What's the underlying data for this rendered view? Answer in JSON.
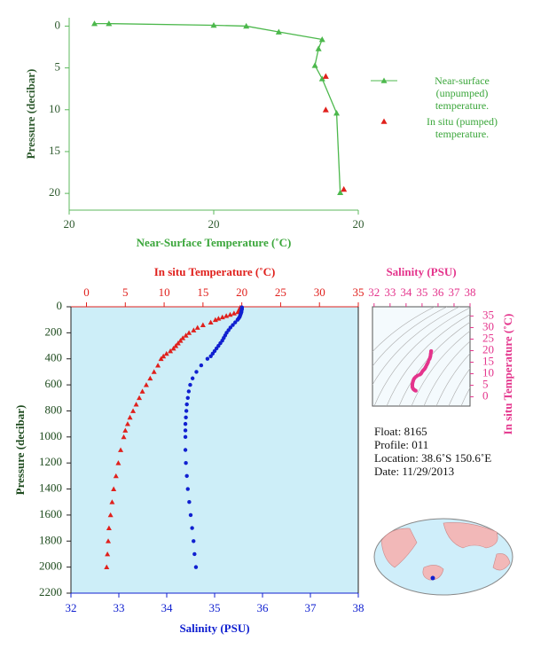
{
  "chart_data": [
    {
      "type": "line",
      "xlabel": "Near-Surface Temperature (˚C)",
      "ylabel": "Pressure (decibar)",
      "xlim": [
        19.6,
        20.4
      ],
      "xticks": [
        {
          "value": 19.6,
          "label": "20"
        },
        {
          "value": 20.0,
          "label": "20"
        },
        {
          "value": 20.4,
          "label": "20"
        }
      ],
      "ylim": [
        -1,
        22
      ],
      "yticks": [
        0,
        5,
        10,
        15,
        20
      ],
      "y_reversed": true,
      "series": [
        {
          "name": "Near-surface (unpumped) temperature.",
          "color": "#4cb84c",
          "line": true,
          "x": [
            19.67,
            19.71,
            20.0,
            20.09,
            20.18,
            20.3,
            20.29,
            20.28,
            20.3,
            20.34,
            20.35
          ],
          "y": [
            -0.3,
            -0.3,
            -0.1,
            0,
            0.7,
            1.6,
            2.7,
            4.7,
            6.3,
            10.4,
            19.9
          ]
        },
        {
          "name": "In situ (pumped) temperature.",
          "color": "#e0201c",
          "line": false,
          "x": [
            20.31,
            20.31,
            20.36
          ],
          "y": [
            6.0,
            10.0,
            19.5
          ]
        }
      ]
    },
    {
      "type": "profile",
      "ylabel": "Pressure (decibar)",
      "xlabel": "Salinity (PSU)",
      "xlim": [
        32,
        38
      ],
      "xticks": [
        32,
        33,
        34,
        35,
        36,
        37,
        38
      ],
      "x2label": "In situ Temperature (˚C)",
      "x2lim": [
        -2,
        35
      ],
      "x2ticks": [
        0,
        5,
        10,
        15,
        20,
        25,
        30,
        35
      ],
      "ylim": [
        0,
        2200
      ],
      "yticks": [
        0,
        200,
        400,
        600,
        800,
        1000,
        1200,
        1400,
        1600,
        1800,
        2000,
        2200
      ],
      "y_reversed": true,
      "y": [
        5,
        10,
        20,
        30,
        40,
        50,
        60,
        70,
        80,
        90,
        100,
        120,
        140,
        160,
        180,
        200,
        220,
        240,
        260,
        280,
        300,
        320,
        340,
        360,
        380,
        400,
        450,
        500,
        550,
        600,
        650,
        700,
        750,
        800,
        850,
        900,
        950,
        1000,
        1100,
        1200,
        1300,
        1400,
        1500,
        1600,
        1700,
        1800,
        1900,
        2000
      ],
      "series": [
        {
          "color": "#e0201c",
          "axis": "x2",
          "marker": "triangle",
          "x": [
            19.8,
            19.8,
            19.7,
            19.6,
            19.5,
            19.0,
            18.5,
            18.0,
            17.5,
            17.0,
            16.6,
            16.0,
            15.0,
            14.3,
            13.8,
            13.2,
            12.8,
            12.4,
            12.1,
            11.8,
            11.5,
            11.2,
            10.8,
            10.3,
            9.9,
            9.6,
            9.2,
            8.7,
            8.2,
            7.7,
            7.2,
            6.8,
            6.4,
            6.0,
            5.6,
            5.3,
            5.0,
            4.8,
            4.4,
            4.1,
            3.8,
            3.5,
            3.3,
            3.1,
            2.9,
            2.8,
            2.7,
            2.6
          ]
        },
        {
          "color": "#1020d0",
          "axis": "x",
          "marker": "dot",
          "x": [
            35.57,
            35.57,
            35.57,
            35.56,
            35.56,
            35.55,
            35.54,
            35.53,
            35.52,
            35.5,
            35.48,
            35.43,
            35.38,
            35.33,
            35.29,
            35.25,
            35.22,
            35.19,
            35.16,
            35.12,
            35.08,
            35.04,
            35.0,
            34.96,
            34.92,
            34.85,
            34.72,
            34.62,
            34.54,
            34.49,
            34.46,
            34.44,
            34.42,
            34.41,
            34.4,
            34.39,
            34.39,
            34.39,
            34.39,
            34.4,
            34.42,
            34.44,
            34.47,
            34.5,
            34.53,
            34.56,
            34.58,
            34.61
          ]
        }
      ]
    },
    {
      "type": "ts",
      "xlabel": "Salinity (PSU)",
      "xlim": [
        31.9,
        38
      ],
      "xticks": [
        32,
        33,
        34,
        35,
        36,
        37,
        38
      ],
      "ylabel": "In situ Temperature (˚C)",
      "ylim": [
        -4,
        39
      ],
      "yticks": [
        0,
        5,
        10,
        15,
        20,
        25,
        30,
        35
      ],
      "color": "#e4348c"
    }
  ],
  "float_info": [
    "Float:  8165",
    "Profile:  011",
    "Location:  38.6˚S  150.6˚E",
    "Date:  11/29/2013"
  ]
}
